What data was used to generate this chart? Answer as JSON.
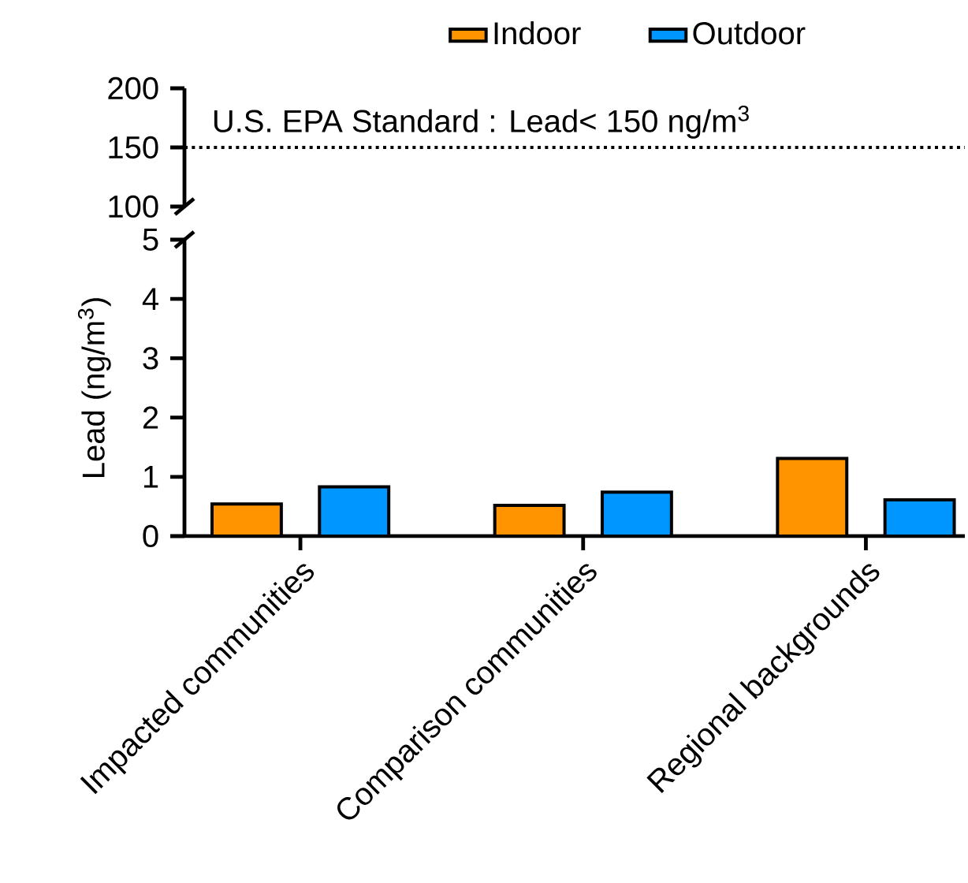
{
  "chart_data": [
    {
      "type": "bar",
      "categories": [
        null,
        null,
        null
      ],
      "ylim": [
        100,
        200
      ],
      "yticks": [
        100,
        150,
        200
      ],
      "tick_labels": "y",
      "ref_lines": [
        {
          "axis": "y",
          "value": 150,
          "label": "U.S. EPA Standard : Lead< 150 ng/m$^{3}$",
          "line_style": "dotted",
          "color": "#000000"
        }
      ]
    },
    {
      "type": "bar",
      "categories": [
        "Impacted communities",
        "Comparison communities",
        "Regional backgrounds"
      ],
      "ylabel": "Lead (ng/m$^{3}$)",
      "ylim": [
        0,
        5
      ],
      "yticks": [
        0,
        1,
        2,
        3,
        4,
        5
      ],
      "legend": "top",
      "series": [
        {
          "name": "Indoor",
          "color": "#ff9400",
          "values": [
            0.54,
            0.52,
            1.31
          ]
        },
        {
          "name": "Outdoor",
          "color": "#0096ff",
          "values": [
            0.83,
            0.74,
            0.61
          ]
        }
      ]
    }
  ]
}
